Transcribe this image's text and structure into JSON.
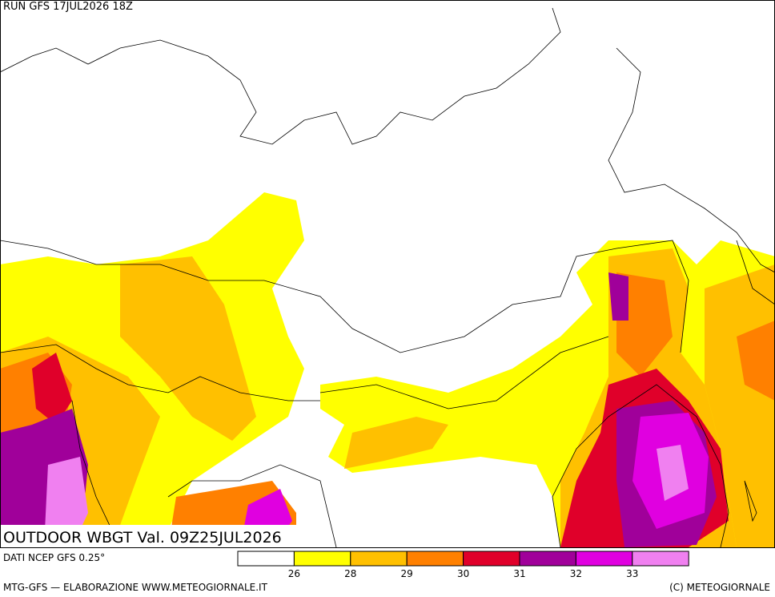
{
  "header": {
    "run": "RUN GFS 17JUL2026 18Z",
    "title": "OUTDOOR WBGT Val. 09Z25JUL2026",
    "source": "DATI NCEP GFS 0.25°"
  },
  "legend": {
    "thresholds": [
      26,
      28,
      29,
      30,
      31,
      32,
      33
    ],
    "colors": [
      "#ffffff",
      "#ffff00",
      "#ffc000",
      "#ff8000",
      "#e0002a",
      "#a0009a",
      "#e000e0",
      "#f080f0"
    ]
  },
  "footer": {
    "left": "MTG-GFS — ELABORAZIONE WWW.METEOGIORNALE.IT",
    "right": "(C) METEOGIORNALE"
  }
}
